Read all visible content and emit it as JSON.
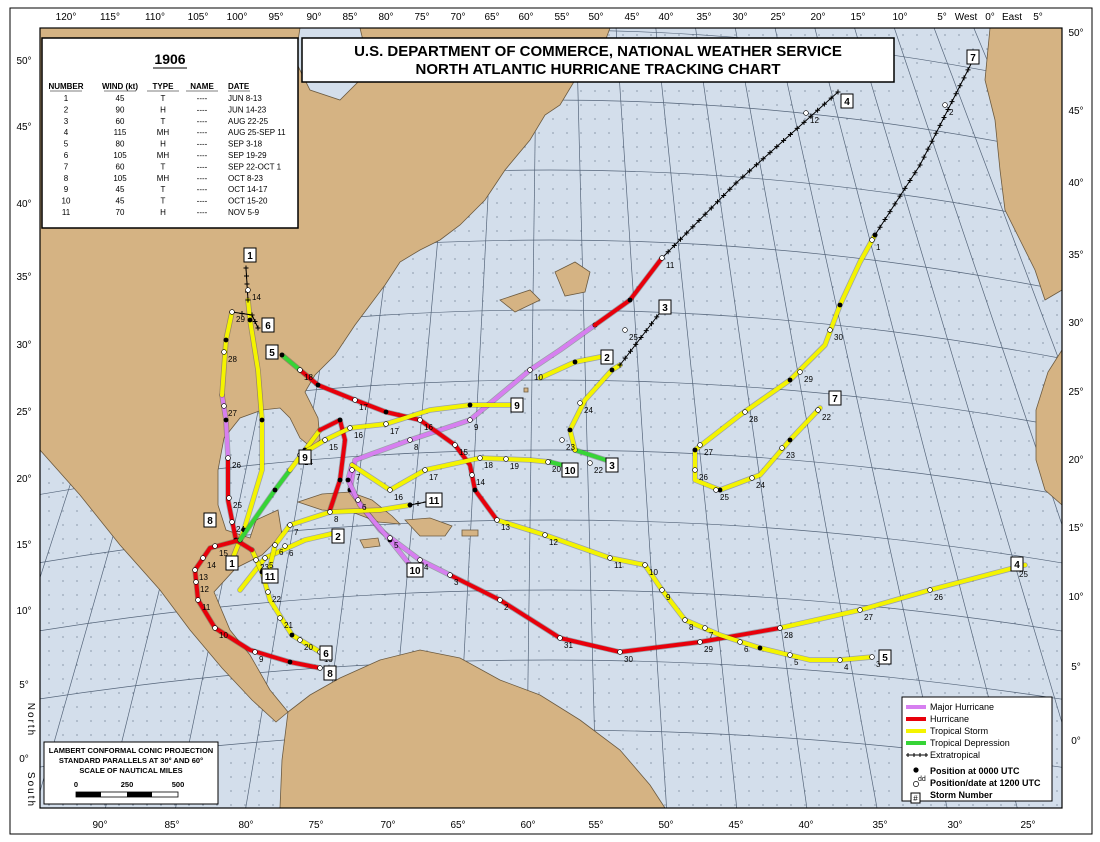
{
  "header": {
    "line1": "U.S. DEPARTMENT OF COMMERCE, NATIONAL WEATHER SERVICE",
    "line2": "NORTH ATLANTIC HURRICANE TRACKING CHART"
  },
  "storm_table": {
    "year": "1906",
    "columns": [
      "NUMBER",
      "WIND (kt)",
      "TYPE",
      "NAME",
      "DATE"
    ],
    "rows": [
      [
        "1",
        "45",
        "T",
        "----",
        "JUN 8-13"
      ],
      [
        "2",
        "90",
        "H",
        "----",
        "JUN 14-23"
      ],
      [
        "3",
        "60",
        "T",
        "----",
        "AUG 22-25"
      ],
      [
        "4",
        "115",
        "MH",
        "----",
        "AUG 25-SEP 11"
      ],
      [
        "5",
        "80",
        "H",
        "----",
        "SEP 3-18"
      ],
      [
        "6",
        "105",
        "MH",
        "----",
        "SEP 19-29"
      ],
      [
        "7",
        "60",
        "T",
        "----",
        "SEP 22-OCT 1"
      ],
      [
        "8",
        "105",
        "MH",
        "----",
        "OCT 8-23"
      ],
      [
        "9",
        "45",
        "T",
        "----",
        "OCT 14-17"
      ],
      [
        "10",
        "45",
        "T",
        "----",
        "OCT 15-20"
      ],
      [
        "11",
        "70",
        "H",
        "----",
        "NOV 5-9"
      ]
    ]
  },
  "legend": {
    "items": [
      "Major Hurricane",
      "Hurricane",
      "Tropical Storm",
      "Tropical Depression",
      "Extratropical",
      "Position at 0000 UTC",
      "Position/date at 1200 UTC",
      "Storm Number"
    ],
    "dd_symbol": "dd",
    "number_symbol": "#"
  },
  "projection": {
    "lines": [
      "LAMBERT CONFORMAL CONIC PROJECTION",
      "STANDARD PARALLELS AT 30° AND 60°",
      "SCALE OF NAUTICAL MILES"
    ],
    "scale": [
      "0",
      "250",
      "500"
    ]
  },
  "axes": {
    "top": [
      "120°",
      "115°",
      "110°",
      "105°",
      "100°",
      "95°",
      "90°",
      "85°",
      "80°",
      "75°",
      "70°",
      "65°",
      "60°",
      "55°",
      "50°",
      "45°",
      "40°",
      "35°",
      "30°",
      "25°",
      "20°",
      "15°",
      "10°",
      "5°",
      "West",
      "0°",
      "East",
      "5°"
    ],
    "bottom": [
      "90°",
      "85°",
      "80°",
      "75°",
      "70°",
      "65°",
      "60°",
      "55°",
      "50°",
      "45°",
      "40°",
      "35°",
      "30°",
      "25°"
    ],
    "left": [
      "50°",
      "45°",
      "40°",
      "35°",
      "30°",
      "25°",
      "20°",
      "15°",
      "10°",
      "5°",
      "0°"
    ],
    "right": [
      "50°",
      "45°",
      "40°",
      "35°",
      "30°",
      "25°",
      "20°",
      "15°",
      "10°",
      "5°",
      "0°"
    ],
    "north": "North",
    "south": "South"
  },
  "storms": [
    {
      "number": "1",
      "days": [
        "14"
      ]
    },
    {
      "number": "2",
      "days": [
        "5",
        "6"
      ]
    },
    {
      "number": "3",
      "days": [
        "22",
        "23",
        "24",
        "25"
      ]
    },
    {
      "number": "4",
      "days": [
        "25",
        "26",
        "27",
        "28",
        "29",
        "30",
        "31",
        "2",
        "3",
        "4",
        "5",
        "6",
        "7",
        "8",
        "9",
        "10",
        "11",
        "12"
      ]
    },
    {
      "number": "5",
      "days": [
        "3",
        "4",
        "5",
        "6",
        "7",
        "8",
        "9",
        "10",
        "11",
        "12",
        "13",
        "14",
        "15",
        "16",
        "17",
        "18"
      ]
    },
    {
      "number": "6",
      "days": [
        "19",
        "20",
        "21",
        "22",
        "23",
        "24",
        "25",
        "26",
        "27",
        "28",
        "29"
      ]
    },
    {
      "number": "7",
      "days": [
        "22",
        "23",
        "24",
        "25",
        "26",
        "27",
        "28",
        "29",
        "30",
        "1",
        "2"
      ]
    },
    {
      "number": "8",
      "days": [
        "8",
        "9",
        "10",
        "11",
        "12",
        "13",
        "14",
        "15"
      ]
    },
    {
      "number": "9",
      "days": [
        "14",
        "15",
        "16",
        "17"
      ]
    },
    {
      "number": "10",
      "days": [
        "16",
        "17",
        "18",
        "19",
        "20"
      ]
    },
    {
      "number": "11",
      "days": [
        "6",
        "7",
        "8"
      ]
    }
  ]
}
